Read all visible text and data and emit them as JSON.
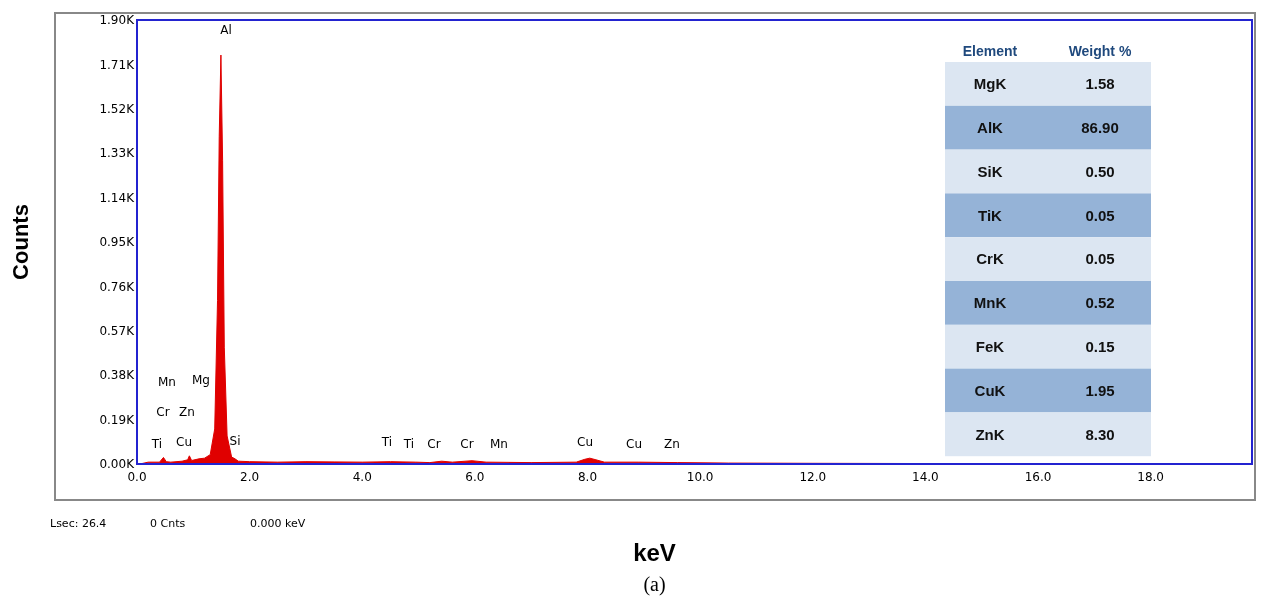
{
  "chart_data": [
    {
      "type": "area",
      "title": "(a)",
      "xlabel": "keV",
      "ylabel": "Counts",
      "x": [
        0.05,
        0.2,
        0.4,
        0.47,
        0.52,
        0.6,
        0.8,
        0.9,
        0.93,
        0.97,
        1.1,
        1.2,
        1.3,
        1.38,
        1.43,
        1.46,
        1.49,
        1.52,
        1.55,
        1.6,
        1.68,
        1.74,
        1.8,
        2.0,
        2.5,
        3.0,
        3.5,
        4.0,
        4.5,
        4.95,
        5.2,
        5.41,
        5.6,
        5.95,
        6.2,
        7.0,
        7.8,
        7.95,
        8.04,
        8.15,
        8.3,
        8.9,
        9.6,
        10.5,
        12.0,
        14.0,
        16.0,
        18.0,
        19.8
      ],
      "series": [
        {
          "color": "#e00000",
          "values": [
            0,
            8,
            8,
            28,
            10,
            8,
            12,
            18,
            35,
            15,
            22,
            25,
            40,
            150,
            700,
            1400,
            1750,
            1300,
            500,
            120,
            30,
            22,
            12,
            10,
            8,
            10,
            9,
            8,
            10,
            8,
            6,
            12,
            8,
            14,
            8,
            6,
            8,
            20,
            25,
            18,
            8,
            8,
            6,
            4,
            3,
            2,
            2,
            1,
            0
          ]
        }
      ],
      "xlim": [
        0,
        19.8
      ],
      "ylim": [
        0,
        1900
      ],
      "xticks": [
        {
          "value": 0,
          "label": "0.0"
        },
        {
          "value": 2,
          "label": "2.0"
        },
        {
          "value": 4,
          "label": "4.0"
        },
        {
          "value": 6,
          "label": "6.0"
        },
        {
          "value": 8,
          "label": "8.0"
        },
        {
          "value": 10,
          "label": "10.0"
        },
        {
          "value": 12,
          "label": "12.0"
        },
        {
          "value": 14,
          "label": "14.0"
        },
        {
          "value": 16,
          "label": "16.0"
        },
        {
          "value": 18,
          "label": "18.0"
        }
      ],
      "yticks": [
        {
          "value": 0,
          "label": "0.00K"
        },
        {
          "value": 190,
          "label": "0.19K"
        },
        {
          "value": 380,
          "label": "0.38K"
        },
        {
          "value": 570,
          "label": "0.57K"
        },
        {
          "value": 760,
          "label": "0.76K"
        },
        {
          "value": 950,
          "label": "0.95K"
        },
        {
          "value": 1140,
          "label": "1.14K"
        },
        {
          "value": 1330,
          "label": "1.33K"
        },
        {
          "value": 1520,
          "label": "1.52K"
        },
        {
          "value": 1710,
          "label": "1.71K"
        },
        {
          "value": 1900,
          "label": "1.90K"
        }
      ],
      "annotations": [
        "Al",
        "Mn",
        "Mg",
        "Cr",
        "Zn",
        "Ti",
        "Cu",
        "Si",
        "Ti",
        "Ti",
        "Cr",
        "Cr",
        "Mn",
        "Cu",
        "Cu",
        "Zn",
        "Lsec: 26.4",
        "0 Cnts",
        "0.000 keV"
      ]
    },
    {
      "type": "other",
      "xlabel": "Element",
      "ylabel": "Weight %",
      "categories": [
        "MgK",
        "AlK",
        "SiK",
        "TiK",
        "CrK",
        "MnK",
        "FeK",
        "CuK",
        "ZnK"
      ],
      "value_labels": [
        "1.58",
        "86.90",
        "0.50",
        "0.05",
        "0.05",
        "0.52",
        "0.15",
        "1.95",
        "8.30"
      ],
      "colors": [
        "#dce6f2",
        "#95b3d7",
        "#dce6f2",
        "#95b3d7",
        "#dce6f2",
        "#95b3d7",
        "#dce6f2",
        "#95b3d7",
        "#dce6f2"
      ]
    }
  ]
}
